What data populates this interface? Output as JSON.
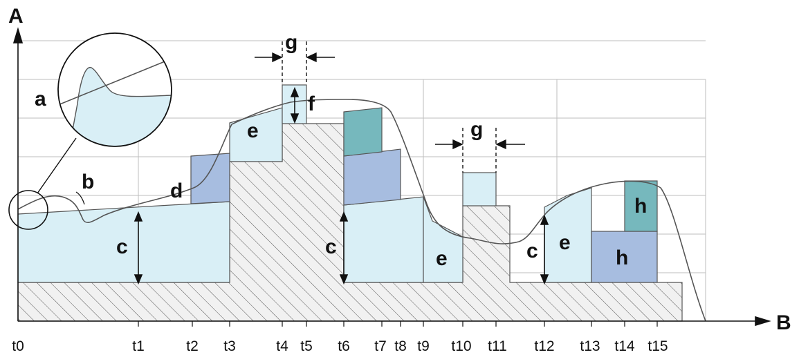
{
  "axes": {
    "y_label": "A",
    "x_label": "B"
  },
  "time_ticks": [
    "t0",
    "t1",
    "t2",
    "t3",
    "t4",
    "t5",
    "t6",
    "t7",
    "t8",
    "t9",
    "t10",
    "t11",
    "t12",
    "t13",
    "t14",
    "t15"
  ],
  "labels": {
    "a": "a",
    "b": "b",
    "c_left": "c",
    "c_mid": "c",
    "c_right": "c",
    "d": "d",
    "e1": "e",
    "e2": "e",
    "e3": "e",
    "f": "f",
    "g1": "g",
    "g2": "g",
    "h1": "h",
    "h2": "h"
  },
  "colors": {
    "light_blue": "#d9eff6",
    "mid_blue": "#a7bde0",
    "teal": "#76b8bd",
    "hatch_fill": "#f1f1f1",
    "grid": "#bdbdbd",
    "stroke": "#555555"
  }
}
